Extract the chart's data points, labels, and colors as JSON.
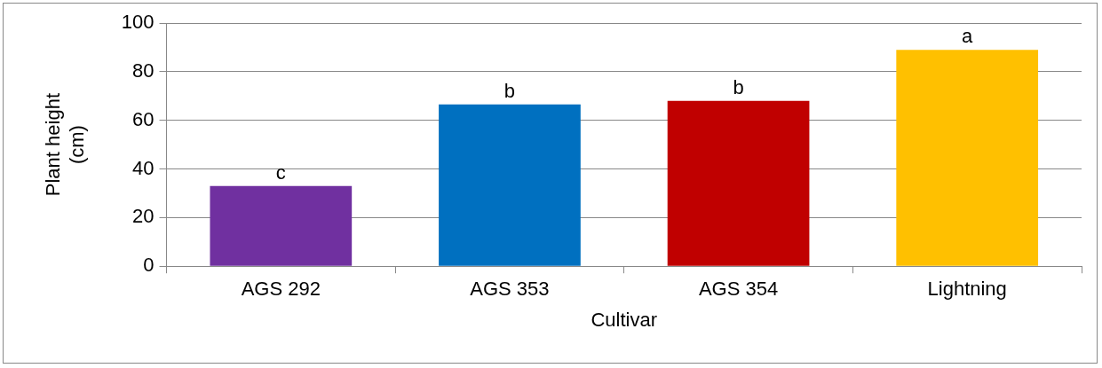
{
  "chart_data": {
    "type": "bar",
    "xlabel": "Cultivar",
    "ylabel": "Plant height (cm)",
    "categories": [
      "AGS 292",
      "AGS 353",
      "AGS 354",
      "Lightning"
    ],
    "values": [
      33,
      66.5,
      68,
      89
    ],
    "colors": [
      "#7030a0",
      "#0070c0",
      "#c00000",
      "#ffc000"
    ],
    "ylim": [
      0,
      100
    ],
    "yticks": [
      0,
      20,
      40,
      60,
      80,
      100
    ],
    "grid": "y",
    "annotations": [
      {
        "text": "c",
        "x": "AGS 292",
        "y": 33
      },
      {
        "text": "b",
        "x": "AGS 353",
        "y": 66.5
      },
      {
        "text": "b",
        "x": "AGS 354",
        "y": 68
      },
      {
        "text": "a",
        "x": "Lightning",
        "y": 89
      }
    ]
  }
}
